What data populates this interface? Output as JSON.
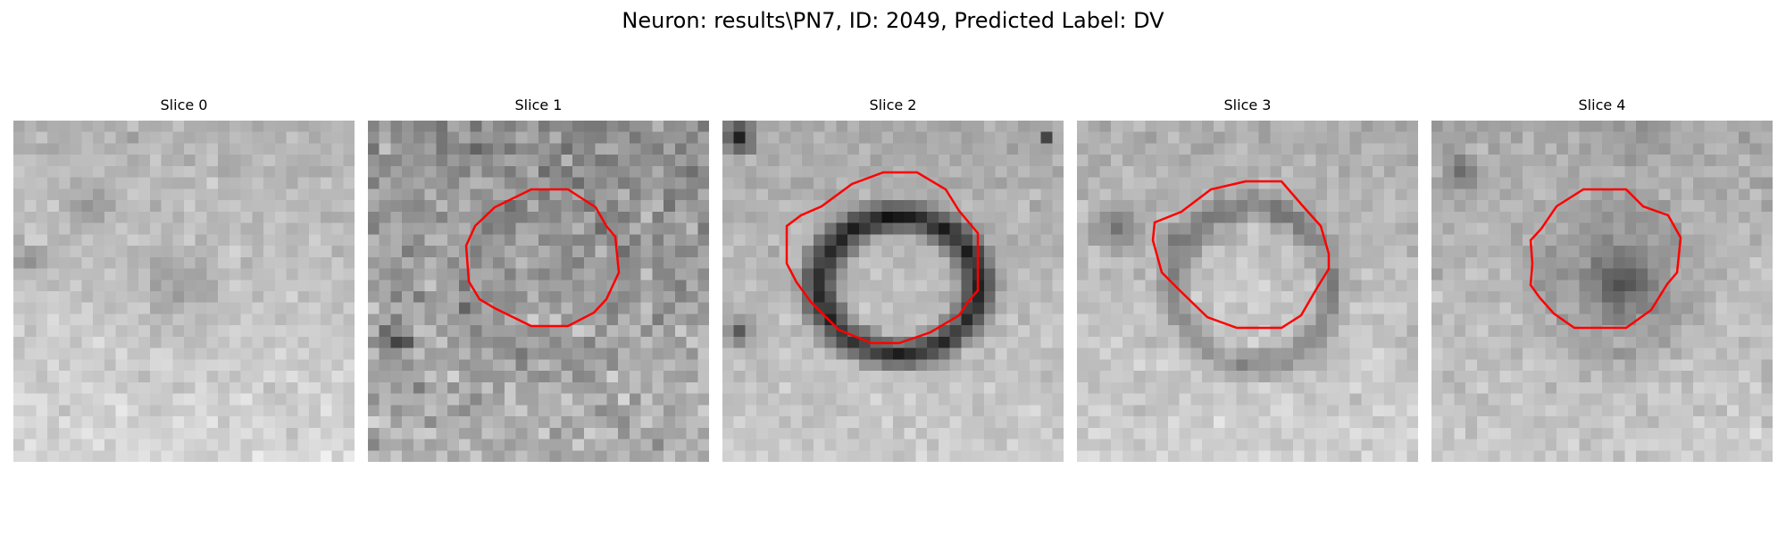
{
  "figure": {
    "title": "Neuron: results\\PN7, ID: 2049, Predicted Label: DV"
  },
  "colors": {
    "contour": "#ff0000",
    "background": "#ffffff"
  },
  "panels": [
    {
      "title": "Slice 0",
      "cell": "faint-cell",
      "seed": 11,
      "has_contour": false
    },
    {
      "title": "Slice 1",
      "cell": "noisy-cell",
      "seed": 23,
      "has_contour": true
    },
    {
      "title": "Slice 2",
      "cell": "dark-ring-cell",
      "seed": 37,
      "has_contour": true
    },
    {
      "title": "Slice 3",
      "cell": "light-center-cell",
      "seed": 41,
      "has_contour": true
    },
    {
      "title": "Slice 4",
      "cell": "dark-center-cell",
      "seed": 53,
      "has_contour": true
    }
  ]
}
